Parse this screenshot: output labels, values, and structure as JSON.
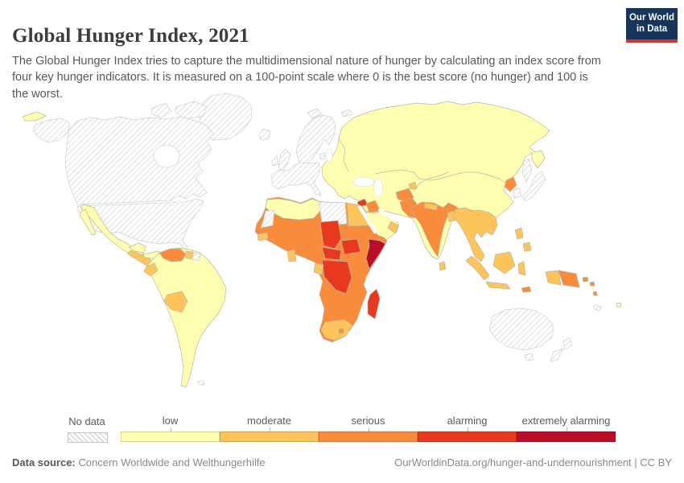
{
  "header": {
    "title": "Global Hunger Index, 2021",
    "subtitle": "The Global Hunger Index tries to capture the multidimensional nature of hunger by calculating an index score from four key hunger indicators. It is measured on a 100-point scale where 0 is the best score (no hunger) and 100 is the worst.",
    "logo": {
      "line1": "Our World",
      "line2": "in Data",
      "bg_color": "#16355c",
      "bar_color": "#d8352e"
    }
  },
  "legend": {
    "no_data_label": "No data",
    "categories": [
      {
        "id": "low",
        "label": "low",
        "color": "#FFFFB2"
      },
      {
        "id": "moderate",
        "label": "moderate",
        "color": "#FDC45C"
      },
      {
        "id": "serious",
        "label": "serious",
        "color": "#F98B3D"
      },
      {
        "id": "alarming",
        "label": "alarming",
        "color": "#E8391F"
      },
      {
        "id": "extremely_alarming",
        "label": "extremely alarming",
        "color": "#BA0E28"
      }
    ],
    "no_data_pattern": "diagonal-hatch"
  },
  "footer": {
    "source_label": "Data source:",
    "source": "Concern Worldwide and Welthungerhilfe",
    "credit": "OurWorldinData.org/hunger-and-undernourishment | CC BY"
  },
  "map": {
    "border_color": "#bdb5a2",
    "no_data_border_color": "#cfcfcf",
    "sea_color": "#ffffff",
    "regions": [
      {
        "id": "greenland",
        "label": "Greenland",
        "category": "no_data"
      },
      {
        "id": "canadian-arctic-a",
        "label": "Canadian Arctic Islands",
        "category": "no_data"
      },
      {
        "id": "canadian-arctic-b",
        "label": "Canadian Arctic Islands",
        "category": "no_data"
      },
      {
        "id": "canada",
        "label": "Canada",
        "category": "no_data"
      },
      {
        "id": "alaska",
        "label": "United States (Alaska)",
        "category": "no_data"
      },
      {
        "id": "usa",
        "label": "United States",
        "category": "no_data"
      },
      {
        "id": "iceland",
        "label": "Iceland",
        "category": "no_data"
      },
      {
        "id": "ireland",
        "label": "Ireland",
        "category": "no_data"
      },
      {
        "id": "british-isles",
        "label": "United Kingdom",
        "category": "no_data"
      },
      {
        "id": "scandinavia",
        "label": "Norway, Sweden, Finland",
        "category": "no_data"
      },
      {
        "id": "denmark",
        "label": "Denmark",
        "category": "no_data"
      },
      {
        "id": "western-europe",
        "label": "Western & Southern Europe",
        "category": "no_data"
      },
      {
        "id": "svalbard",
        "label": "Svalbard",
        "category": "no_data"
      },
      {
        "id": "franz-josef",
        "label": "Arctic Islands",
        "category": "no_data"
      },
      {
        "id": "suriname",
        "label": "Suriname",
        "category": "no_data"
      },
      {
        "id": "falkland-islands",
        "label": "Falkland Islands",
        "category": "no_data"
      },
      {
        "id": "western-sahara",
        "label": "Western Sahara",
        "category": "no_data"
      },
      {
        "id": "libya",
        "label": "Libya",
        "category": "no_data"
      },
      {
        "id": "south-korea",
        "label": "South Korea",
        "category": "no_data"
      },
      {
        "id": "japan",
        "label": "Japan",
        "category": "no_data"
      },
      {
        "id": "sakhalin",
        "label": "Sakhalin",
        "category": "no_data"
      },
      {
        "id": "australia",
        "label": "Australia",
        "category": "no_data"
      },
      {
        "id": "tasmania",
        "label": "Tasmania",
        "category": "no_data"
      },
      {
        "id": "new-zealand",
        "label": "New Zealand",
        "category": "no_data"
      },
      {
        "id": "new-caledonia",
        "label": "New Caledonia",
        "category": "no_data"
      },
      {
        "id": "chukotka-west",
        "label": "Russia (far east)",
        "category": "low"
      },
      {
        "id": "eurasia-base",
        "label": "Russia, Eastern Europe, Turkey, Iran, Central Asia, China, Mongolia",
        "category": "low"
      },
      {
        "id": "arabia",
        "label": "Saudi Arabia & Gulf states",
        "category": "low"
      },
      {
        "id": "north-africa-maghreb",
        "label": "Morocco, Algeria, Tunisia",
        "category": "low"
      },
      {
        "id": "mexico",
        "label": "Mexico",
        "category": "low"
      },
      {
        "id": "mexico-yucatan",
        "label": "Mexico (Yucatán)",
        "category": "low"
      },
      {
        "id": "mexico-baja",
        "label": "Mexico (Baja California)",
        "category": "low"
      },
      {
        "id": "costa-rica-panama",
        "label": "Costa Rica & Panama",
        "category": "low"
      },
      {
        "id": "cuba",
        "label": "Cuba",
        "category": "low"
      },
      {
        "id": "jamaica",
        "label": "Jamaica",
        "category": "low"
      },
      {
        "id": "dominican-republic",
        "label": "Dominican Republic",
        "category": "low"
      },
      {
        "id": "puerto-rico",
        "label": "Puerto Rico",
        "category": "low"
      },
      {
        "id": "south-america",
        "label": "Brazil, Argentina, Colombia, Peru, Chile, Paraguay, Uruguay",
        "category": "low"
      },
      {
        "id": "fiji",
        "label": "Fiji",
        "category": "low"
      },
      {
        "id": "central-america",
        "label": "Guatemala, Honduras, Nicaragua, El Salvador",
        "category": "moderate"
      },
      {
        "id": "guyana",
        "label": "Guyana",
        "category": "moderate"
      },
      {
        "id": "ecuador",
        "label": "Ecuador",
        "category": "moderate"
      },
      {
        "id": "bolivia",
        "label": "Bolivia",
        "category": "moderate"
      },
      {
        "id": "senegal",
        "label": "Senegal & The Gambia",
        "category": "moderate"
      },
      {
        "id": "ghana",
        "label": "Ghana",
        "category": "moderate"
      },
      {
        "id": "gabon",
        "label": "Gabon",
        "category": "moderate"
      },
      {
        "id": "egypt",
        "label": "Egypt",
        "category": "moderate"
      },
      {
        "id": "south-africa",
        "label": "South Africa & Eswatini",
        "category": "moderate"
      },
      {
        "id": "tajikistan",
        "label": "Tajikistan",
        "category": "moderate"
      },
      {
        "id": "nepal",
        "label": "Nepal",
        "category": "moderate"
      },
      {
        "id": "bangladesh",
        "label": "Bangladesh",
        "category": "moderate"
      },
      {
        "id": "sri-lanka",
        "label": "Sri Lanka",
        "category": "moderate"
      },
      {
        "id": "southeast-asia",
        "label": "Myanmar, Thailand, Laos, Cambodia, Vietnam, Malaysia",
        "category": "moderate"
      },
      {
        "id": "sumatra",
        "label": "Indonesia (Sumatra)",
        "category": "moderate"
      },
      {
        "id": "borneo",
        "label": "Indonesia (Borneo)",
        "category": "moderate"
      },
      {
        "id": "java",
        "label": "Indonesia (Java)",
        "category": "moderate"
      },
      {
        "id": "sulawesi",
        "label": "Indonesia (Sulawesi)",
        "category": "moderate"
      },
      {
        "id": "west-papua",
        "label": "Indonesia (Papua)",
        "category": "moderate"
      },
      {
        "id": "philippines-luzon",
        "label": "Philippines (Luzon)",
        "category": "moderate"
      },
      {
        "id": "philippines-mindanao",
        "label": "Philippines (Mindanao)",
        "category": "moderate"
      },
      {
        "id": "oman",
        "label": "Oman",
        "category": "moderate"
      },
      {
        "id": "haiti",
        "label": "Haiti",
        "category": "serious"
      },
      {
        "id": "venezuela",
        "label": "Venezuela",
        "category": "serious"
      },
      {
        "id": "africa-base",
        "label": "Sahel, West, East & Southern Africa",
        "category": "serious"
      },
      {
        "id": "lesotho",
        "label": "Lesotho",
        "category": "serious"
      },
      {
        "id": "iraq",
        "label": "Iraq",
        "category": "serious"
      },
      {
        "id": "afghanistan",
        "label": "Afghanistan",
        "category": "serious"
      },
      {
        "id": "pakistan",
        "label": "Pakistan",
        "category": "serious"
      },
      {
        "id": "india",
        "label": "India",
        "category": "serious"
      },
      {
        "id": "north-korea",
        "label": "North Korea",
        "category": "serious"
      },
      {
        "id": "papua-new-guinea",
        "label": "Papua New Guinea",
        "category": "serious"
      },
      {
        "id": "timor",
        "label": "Timor-Leste",
        "category": "serious"
      },
      {
        "id": "solomon-islands",
        "label": "Solomon Islands",
        "category": "serious"
      },
      {
        "id": "vanuatu",
        "label": "Vanuatu",
        "category": "serious"
      },
      {
        "id": "syria",
        "label": "Syria",
        "category": "alarming"
      },
      {
        "id": "yemen",
        "label": "Yemen",
        "category": "alarming"
      },
      {
        "id": "chad",
        "label": "Chad",
        "category": "alarming"
      },
      {
        "id": "south-sudan",
        "label": "South Sudan",
        "category": "alarming"
      },
      {
        "id": "central-african-republic",
        "label": "Central African Republic",
        "category": "alarming"
      },
      {
        "id": "dr-congo",
        "label": "Democratic Republic of Congo",
        "category": "alarming"
      },
      {
        "id": "madagascar",
        "label": "Madagascar",
        "category": "alarming"
      },
      {
        "id": "somalia",
        "label": "Somalia",
        "category": "extremely_alarming"
      }
    ]
  },
  "chart_data": {
    "type": "choropleth",
    "title": "Global Hunger Index, 2021",
    "year": 2021,
    "scale": [
      "low",
      "moderate",
      "serious",
      "alarming",
      "extremely alarming"
    ],
    "scale_colors": [
      "#FFFFB2",
      "#FDC45C",
      "#F98B3D",
      "#E8391F",
      "#BA0E28"
    ],
    "no_data_regions": [
      "Canada",
      "United States",
      "Greenland",
      "Western Europe",
      "Libya",
      "Western Sahara",
      "Japan",
      "South Korea",
      "Australia",
      "New Zealand",
      "Suriname",
      "Oman region (partial)"
    ],
    "low": [
      "Russia",
      "China",
      "Eastern Europe",
      "Turkey",
      "Iran",
      "Saudi Arabia",
      "Mexico",
      "Brazil",
      "Argentina",
      "Colombia",
      "Peru",
      "Chile",
      "Cuba",
      "Morocco",
      "Algeria",
      "Tunisia",
      "Fiji"
    ],
    "moderate": [
      "Guatemala",
      "Honduras",
      "Nicaragua",
      "Ecuador",
      "Bolivia",
      "Guyana",
      "Senegal",
      "Ghana",
      "Gabon",
      "Egypt",
      "South Africa",
      "Nepal",
      "Bangladesh",
      "Sri Lanka",
      "Myanmar",
      "Thailand",
      "Vietnam",
      "Malaysia",
      "Indonesia",
      "Philippines",
      "Tajikistan"
    ],
    "serious": [
      "Haiti",
      "Venezuela",
      "Mauritania",
      "Mali",
      "Niger",
      "Nigeria",
      "Sudan",
      "Ethiopia",
      "Kenya",
      "Tanzania",
      "Angola",
      "Zambia",
      "Zimbabwe",
      "Mozambique",
      "Iraq",
      "Afghanistan",
      "Pakistan",
      "India",
      "North Korea",
      "Papua New Guinea"
    ],
    "alarming": [
      "Syria",
      "Yemen",
      "Chad",
      "South Sudan",
      "Central African Republic",
      "Democratic Republic of Congo",
      "Madagascar"
    ],
    "extremely_alarming": [
      "Somalia"
    ]
  }
}
